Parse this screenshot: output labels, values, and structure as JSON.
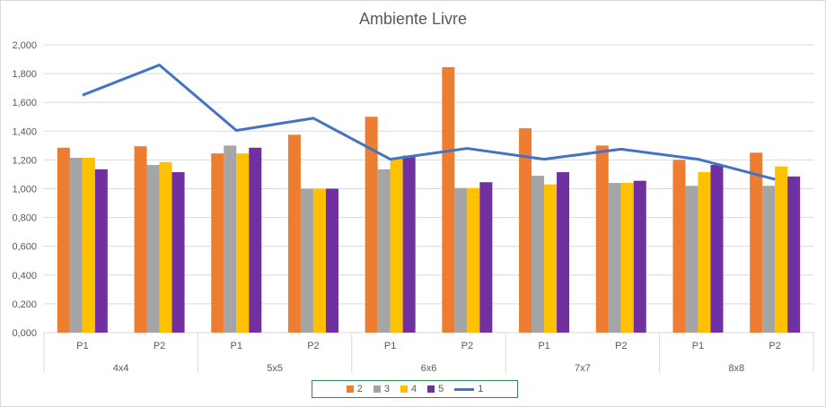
{
  "chart_data": {
    "type": "bar",
    "title": "Ambiente Livre",
    "groups": [
      "4x4",
      "5x5",
      "6x6",
      "7x7",
      "8x8"
    ],
    "categories": [
      "P1",
      "P2",
      "P1",
      "P2",
      "P1",
      "P2",
      "P1",
      "P2",
      "P1",
      "P2"
    ],
    "ylim": [
      0,
      2
    ],
    "yticks": [
      "0,000",
      "0,200",
      "0,400",
      "0,600",
      "0,800",
      "1,000",
      "1,200",
      "1,400",
      "1,600",
      "1,800",
      "2,000"
    ],
    "series": [
      {
        "name": "2",
        "kind": "bar",
        "color": "#ED7D31",
        "values": [
          1.285,
          1.295,
          1.245,
          1.375,
          1.5,
          1.845,
          1.42,
          1.3,
          1.2,
          1.25
        ]
      },
      {
        "name": "3",
        "kind": "bar",
        "color": "#A5A5A5",
        "values": [
          1.215,
          1.165,
          1.3,
          1.0,
          1.135,
          1.005,
          1.09,
          1.04,
          1.02,
          1.02
        ]
      },
      {
        "name": "4",
        "kind": "bar",
        "color": "#FFC000",
        "values": [
          1.215,
          1.185,
          1.245,
          1.0,
          1.21,
          1.005,
          1.03,
          1.04,
          1.115,
          1.155
        ]
      },
      {
        "name": "5",
        "kind": "bar",
        "color": "#7030A0",
        "values": [
          1.135,
          1.115,
          1.285,
          1.0,
          1.23,
          1.045,
          1.115,
          1.055,
          1.165,
          1.085
        ]
      },
      {
        "name": "1",
        "kind": "line",
        "color": "#4472C4",
        "values": [
          1.65,
          1.86,
          1.405,
          1.49,
          1.205,
          1.28,
          1.205,
          1.275,
          1.205,
          1.065
        ]
      }
    ],
    "legend_position": "bottom",
    "grid": true
  }
}
